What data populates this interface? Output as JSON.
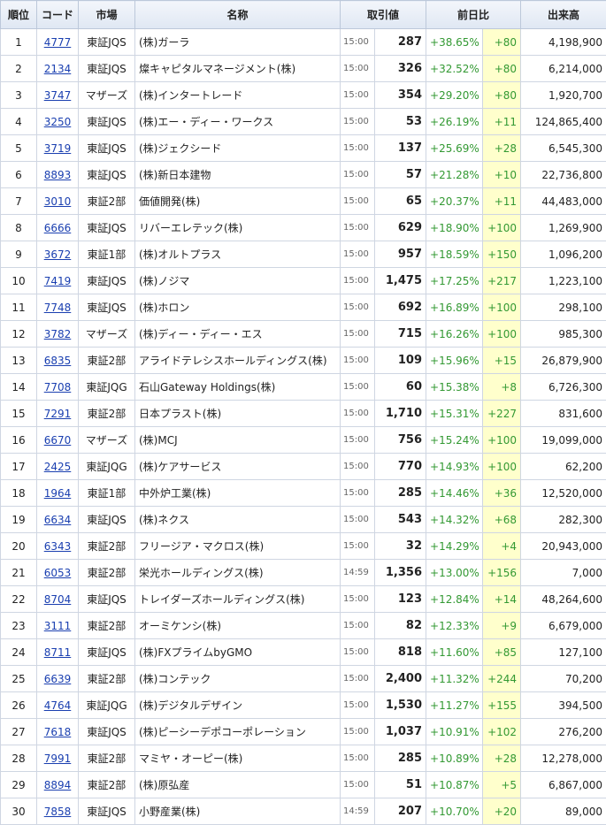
{
  "table": {
    "headers": [
      "順位",
      "コード",
      "市場",
      "名称",
      "取引値",
      "前日比",
      "出来高"
    ],
    "rows": [
      [
        "1",
        "4777",
        "東証JQS",
        "(株)ガーラ",
        "15:00",
        "287",
        "+38.65%",
        "+80",
        "4,198,900"
      ],
      [
        "2",
        "2134",
        "東証JQS",
        "燦キャピタルマネージメント(株)",
        "15:00",
        "326",
        "+32.52%",
        "+80",
        "6,214,000"
      ],
      [
        "3",
        "3747",
        "マザーズ",
        "(株)インタートレード",
        "15:00",
        "354",
        "+29.20%",
        "+80",
        "1,920,700"
      ],
      [
        "4",
        "3250",
        "東証JQS",
        "(株)エー・ディー・ワークス",
        "15:00",
        "53",
        "+26.19%",
        "+11",
        "124,865,400"
      ],
      [
        "5",
        "3719",
        "東証JQS",
        "(株)ジェクシード",
        "15:00",
        "137",
        "+25.69%",
        "+28",
        "6,545,300"
      ],
      [
        "6",
        "8893",
        "東証JQS",
        "(株)新日本建物",
        "15:00",
        "57",
        "+21.28%",
        "+10",
        "22,736,800"
      ],
      [
        "7",
        "3010",
        "東証2部",
        "価値開発(株)",
        "15:00",
        "65",
        "+20.37%",
        "+11",
        "44,483,000"
      ],
      [
        "8",
        "6666",
        "東証JQS",
        "リバーエレテック(株)",
        "15:00",
        "629",
        "+18.90%",
        "+100",
        "1,269,900"
      ],
      [
        "9",
        "3672",
        "東証1部",
        "(株)オルトプラス",
        "15:00",
        "957",
        "+18.59%",
        "+150",
        "1,096,200"
      ],
      [
        "10",
        "7419",
        "東証JQS",
        "(株)ノジマ",
        "15:00",
        "1,475",
        "+17.25%",
        "+217",
        "1,223,100"
      ],
      [
        "11",
        "7748",
        "東証JQS",
        "(株)ホロン",
        "15:00",
        "692",
        "+16.89%",
        "+100",
        "298,100"
      ],
      [
        "12",
        "3782",
        "マザーズ",
        "(株)ディー・ディー・エス",
        "15:00",
        "715",
        "+16.26%",
        "+100",
        "985,300"
      ],
      [
        "13",
        "6835",
        "東証2部",
        "アライドテレシスホールディングス(株)",
        "15:00",
        "109",
        "+15.96%",
        "+15",
        "26,879,900"
      ],
      [
        "14",
        "7708",
        "東証JQG",
        "石山Gateway Holdings(株)",
        "15:00",
        "60",
        "+15.38%",
        "+8",
        "6,726,300"
      ],
      [
        "15",
        "7291",
        "東証2部",
        "日本プラスト(株)",
        "15:00",
        "1,710",
        "+15.31%",
        "+227",
        "831,600"
      ],
      [
        "16",
        "6670",
        "マザーズ",
        "(株)MCJ",
        "15:00",
        "756",
        "+15.24%",
        "+100",
        "19,099,000"
      ],
      [
        "17",
        "2425",
        "東証JQG",
        "(株)ケアサービス",
        "15:00",
        "770",
        "+14.93%",
        "+100",
        "62,200"
      ],
      [
        "18",
        "1964",
        "東証1部",
        "中外炉工業(株)",
        "15:00",
        "285",
        "+14.46%",
        "+36",
        "12,520,000"
      ],
      [
        "19",
        "6634",
        "東証JQS",
        "(株)ネクス",
        "15:00",
        "543",
        "+14.32%",
        "+68",
        "282,300"
      ],
      [
        "20",
        "6343",
        "東証2部",
        "フリージア・マクロス(株)",
        "15:00",
        "32",
        "+14.29%",
        "+4",
        "20,943,000"
      ],
      [
        "21",
        "6053",
        "東証2部",
        "栄光ホールディングス(株)",
        "14:59",
        "1,356",
        "+13.00%",
        "+156",
        "7,000"
      ],
      [
        "22",
        "8704",
        "東証JQS",
        "トレイダーズホールディングス(株)",
        "15:00",
        "123",
        "+12.84%",
        "+14",
        "48,264,600"
      ],
      [
        "23",
        "3111",
        "東証2部",
        "オーミケンシ(株)",
        "15:00",
        "82",
        "+12.33%",
        "+9",
        "6,679,000"
      ],
      [
        "24",
        "8711",
        "東証JQS",
        "(株)FXプライムbyGMO",
        "15:00",
        "818",
        "+11.60%",
        "+85",
        "127,100"
      ],
      [
        "25",
        "6639",
        "東証2部",
        "(株)コンテック",
        "15:00",
        "2,400",
        "+11.32%",
        "+244",
        "70,200"
      ],
      [
        "26",
        "4764",
        "東証JQG",
        "(株)デジタルデザイン",
        "15:00",
        "1,530",
        "+11.27%",
        "+155",
        "394,500"
      ],
      [
        "27",
        "7618",
        "東証JQS",
        "(株)ピーシーデポコーポレーション",
        "15:00",
        "1,037",
        "+10.91%",
        "+102",
        "276,200"
      ],
      [
        "28",
        "7991",
        "東証2部",
        "マミヤ・オーピー(株)",
        "15:00",
        "285",
        "+10.89%",
        "+28",
        "12,278,000"
      ],
      [
        "29",
        "8894",
        "東証2部",
        "(株)原弘産",
        "15:00",
        "51",
        "+10.87%",
        "+5",
        "6,867,000"
      ],
      [
        "30",
        "7858",
        "東証JQS",
        "小野産業(株)",
        "14:59",
        "207",
        "+10.70%",
        "+20",
        "89,000"
      ]
    ]
  }
}
